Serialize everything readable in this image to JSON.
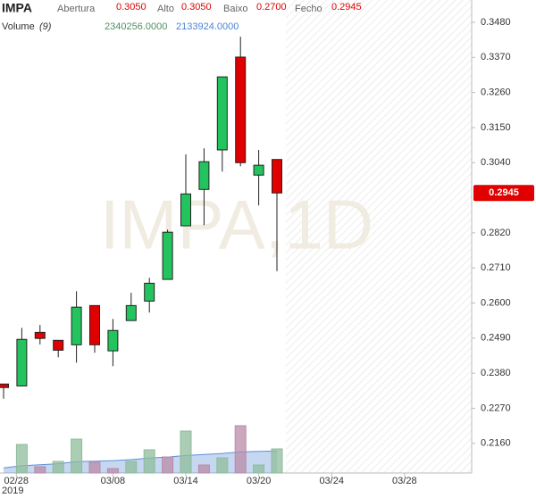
{
  "chart_data": {
    "type": "candlestick",
    "symbol": "IMPA",
    "watermark": "IMPA,1D",
    "header": {
      "open_label": "Abertura",
      "open": "0.3050",
      "high_label": "Alto",
      "high": "0.3050",
      "low_label": "Baixo",
      "low": "0.2700",
      "close_label": "Fecho",
      "close": "0.2945",
      "volume_label": "Volume",
      "volume_period": "(9)",
      "volume": "2340256.0000",
      "volume_ma": "2133924.0000"
    },
    "price_tag": "0.2945",
    "year_label": "2019",
    "open": [
      0.2346,
      0.234,
      0.2508,
      0.2483,
      0.2469,
      0.2592,
      0.245,
      0.2545,
      0.2606,
      0.2674,
      0.2842,
      0.2956,
      0.308,
      0.3371,
      0.3001,
      0.305
    ],
    "high": [
      0.2346,
      0.2522,
      0.2531,
      0.2483,
      0.2637,
      0.2592,
      0.255,
      0.2632,
      0.2679,
      0.283,
      0.3066,
      0.3085,
      0.3309,
      0.3435,
      0.308,
      0.305
    ],
    "low": [
      0.23,
      0.234,
      0.247,
      0.243,
      0.2413,
      0.2444,
      0.2402,
      0.2545,
      0.257,
      0.2674,
      0.2842,
      0.2844,
      0.3012,
      0.3029,
      0.2906,
      0.27
    ],
    "close": [
      0.2335,
      0.2486,
      0.2489,
      0.2452,
      0.2587,
      0.2469,
      0.2514,
      0.2592,
      0.2662,
      0.2822,
      0.2942,
      0.3043,
      0.3309,
      0.304,
      0.3032,
      0.2945
    ],
    "up_color": "#23c45e",
    "down_color": "#e00000",
    "volume": [
      null,
      2774000,
      607000,
      1127000,
      3294000,
      1040000,
      433000,
      1127000,
      2254000,
      1560000,
      4074000,
      780000,
      1474000,
      4594000,
      780000,
      2340256
    ],
    "volume_colors": [
      "#8fbc9b",
      "#8fbc9b",
      "#b98ba8",
      "#8fbc9b",
      "#8fbc9b",
      "#b98ba8",
      "#b98ba8",
      "#8fbc9b",
      "#8fbc9b",
      "#b98ba8",
      "#8fbc9b",
      "#b98ba8",
      "#8fbc9b",
      "#b98ba8",
      "#8fbc9b",
      "#8fbc9b"
    ],
    "volume_ma": [
      500000,
      700000,
      800000,
      900000,
      1100000,
      1150000,
      1200000,
      1300000,
      1450000,
      1550000,
      1700000,
      1800000,
      1900000,
      2050000,
      2100000,
      2133924
    ],
    "volume_ma_color": "#5b8fd6",
    "volume_lim": [
      0,
      45938000
    ],
    "ylim": [
      0.2067,
      0.355
    ],
    "yticks": [
      {
        "value": 0.348,
        "label": "0.3480"
      },
      {
        "value": 0.337,
        "label": "0.3370"
      },
      {
        "value": 0.326,
        "label": "0.3260"
      },
      {
        "value": 0.315,
        "label": "0.3150"
      },
      {
        "value": 0.304,
        "label": "0.3040"
      },
      {
        "value": 0.282,
        "label": "0.2820"
      },
      {
        "value": 0.271,
        "label": "0.2710"
      },
      {
        "value": 0.26,
        "label": "0.2600"
      },
      {
        "value": 0.249,
        "label": "0.2490"
      },
      {
        "value": 0.238,
        "label": "0.2380"
      },
      {
        "value": 0.227,
        "label": "0.2270"
      },
      {
        "value": 0.216,
        "label": "0.2160"
      }
    ],
    "xlim": [
      -0.196,
      25.686
    ],
    "xticks": [
      {
        "value": 0.7,
        "label": "02/28"
      },
      {
        "value": 6.0,
        "label": "03/08"
      },
      {
        "value": 10.0,
        "label": "03/14"
      },
      {
        "value": 14.0,
        "label": "03/20"
      },
      {
        "value": 18.0,
        "label": "03/24"
      },
      {
        "value": 22.0,
        "label": "03/28"
      }
    ]
  }
}
